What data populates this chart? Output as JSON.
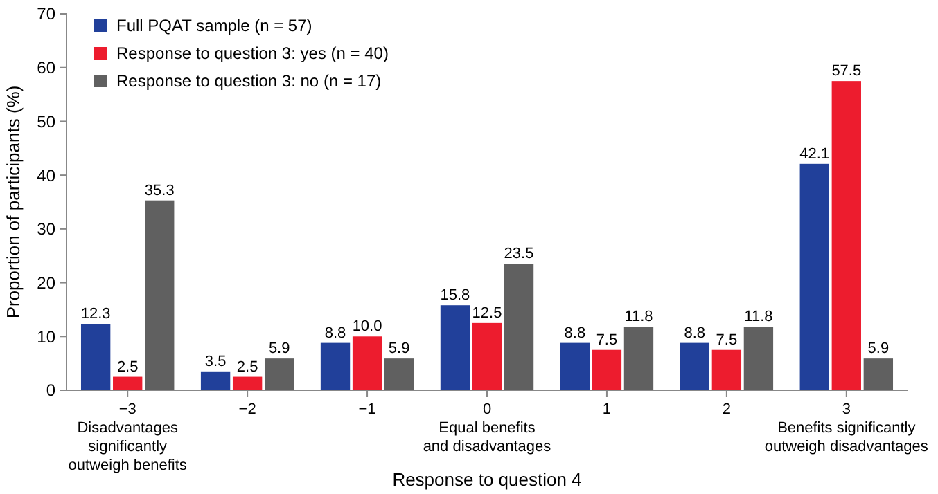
{
  "chart_data": {
    "type": "bar",
    "xlabel": "Response to question 4",
    "ylabel": "Proportion of participants (%)",
    "categories": [
      "−3\nDisadvantages\nsignificantly\noutweigh benefits",
      "−2",
      "−1",
      "0\nEqual benefits\nand disadvantages",
      "1",
      "2",
      "3\nBenefits significantly\noutweigh disadvantages"
    ],
    "series": [
      {
        "name": "Full PQAT sample (n = 57)",
        "color": "#21409a",
        "values": [
          12.3,
          3.5,
          8.8,
          15.8,
          8.8,
          8.8,
          42.1
        ]
      },
      {
        "name": "Response to question 3: yes (n = 40)",
        "color": "#ed1c2e",
        "values": [
          2.5,
          2.5,
          10.0,
          12.5,
          7.5,
          7.5,
          57.5
        ]
      },
      {
        "name": "Response to question 3: no (n = 17)",
        "color": "#606060",
        "values": [
          35.3,
          5.9,
          5.9,
          23.5,
          11.8,
          11.8,
          5.9
        ]
      }
    ],
    "value_labels": [
      [
        "12.3",
        "3.5",
        "8.8",
        "15.8",
        "8.8",
        "8.8",
        "42.1"
      ],
      [
        "2.5",
        "2.5",
        "10.0",
        "12.5",
        "7.5",
        "7.5",
        "57.5"
      ],
      [
        "35.3",
        "5.9",
        "5.9",
        "23.5",
        "11.8",
        "11.8",
        "5.9"
      ]
    ],
    "ylim": [
      0,
      70
    ],
    "yticks": [
      0,
      10,
      20,
      30,
      40,
      50,
      60,
      70
    ],
    "grid": false,
    "legend": "top left"
  }
}
